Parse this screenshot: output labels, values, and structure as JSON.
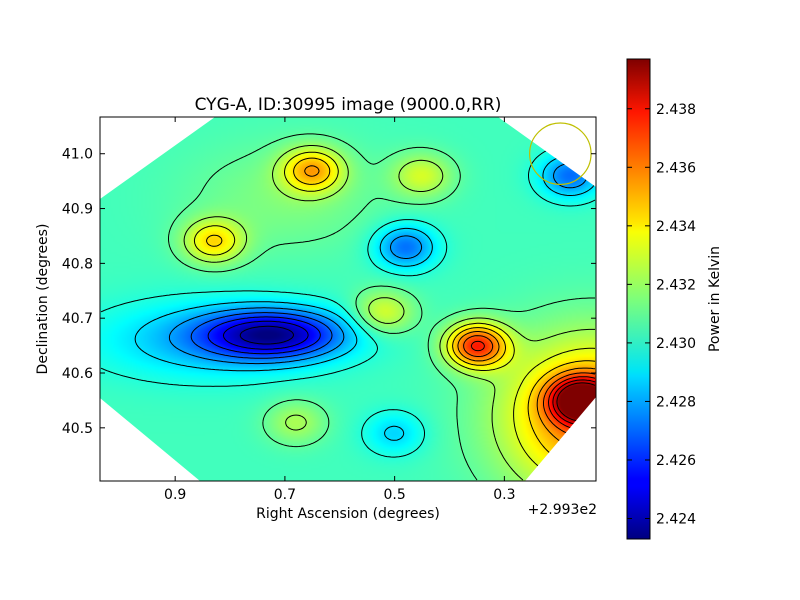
{
  "chart_data": {
    "type": "heatmap",
    "title": "CYG-A, ID:30995 image (9000.0,RR)",
    "xlabel": "Right Ascension (degrees)",
    "ylabel": "Declination (degrees)",
    "x_offset_label": "+2.993e2",
    "x_ticks": [
      {
        "value": 0.9,
        "label": "0.9"
      },
      {
        "value": 0.7,
        "label": "0.7"
      },
      {
        "value": 0.5,
        "label": "0.5"
      },
      {
        "value": 0.3,
        "label": "0.3"
      }
    ],
    "y_ticks": [
      {
        "value": 41.0,
        "label": "41.0"
      },
      {
        "value": 40.9,
        "label": "40.9"
      },
      {
        "value": 40.8,
        "label": "40.8"
      },
      {
        "value": 40.7,
        "label": "40.7"
      },
      {
        "value": 40.6,
        "label": "40.6"
      },
      {
        "value": 40.5,
        "label": "40.5"
      }
    ],
    "xlim": [
      1.037,
      0.133
    ],
    "ylim": [
      40.403,
      41.067
    ],
    "x_inverted": true,
    "colorbar": {
      "label": "Power in Kelvin",
      "colormap": "jet",
      "vmin": 2.4233,
      "vmax": 2.4397,
      "ticks": [
        {
          "value": 2.438,
          "label": "2.438"
        },
        {
          "value": 2.436,
          "label": "2.436"
        },
        {
          "value": 2.434,
          "label": "2.434"
        },
        {
          "value": 2.432,
          "label": "2.432"
        },
        {
          "value": 2.43,
          "label": "2.430"
        },
        {
          "value": 2.428,
          "label": "2.428"
        },
        {
          "value": 2.426,
          "label": "2.426"
        },
        {
          "value": 2.424,
          "label": "2.424"
        }
      ]
    },
    "features": [
      {
        "kind": "min",
        "ra": 0.72,
        "dec": 40.67,
        "value": 2.4235
      },
      {
        "kind": "max",
        "ra": 0.35,
        "dec": 40.65,
        "value": 2.438
      },
      {
        "kind": "max",
        "ra": 0.16,
        "dec": 40.55,
        "value": 2.4395
      },
      {
        "kind": "min",
        "ra": 0.48,
        "dec": 40.83,
        "value": 2.4265
      },
      {
        "kind": "min",
        "ra": 0.18,
        "dec": 40.96,
        "value": 2.4265
      },
      {
        "kind": "max",
        "ra": 0.65,
        "dec": 40.97,
        "value": 2.4352
      },
      {
        "kind": "max",
        "ra": 0.83,
        "dec": 40.84,
        "value": 2.4345
      },
      {
        "kind": "max",
        "ra": 0.52,
        "dec": 40.71,
        "value": 2.4335
      },
      {
        "kind": "min",
        "ra": 0.5,
        "dec": 40.49,
        "value": 2.4285
      },
      {
        "kind": "max",
        "ra": 0.68,
        "dec": 40.51,
        "value": 2.4325
      },
      {
        "kind": "max",
        "ra": 0.45,
        "dec": 40.96,
        "value": 2.4332
      }
    ],
    "beam": {
      "ra": 0.198,
      "dec": 41.0,
      "radius_deg": 0.056,
      "color": "#bfbf00"
    },
    "contour_color": "#000000",
    "grid": false
  }
}
